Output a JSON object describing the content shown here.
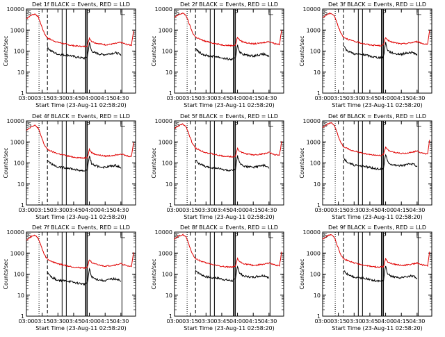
{
  "panels": [
    {
      "title": "Det 1f BLACK = Events, RED = LLD",
      "corner": "S",
      "flag": "P"
    },
    {
      "title": "Det 2f BLACK = Events, RED = LLD",
      "corner": "S",
      "flag": "P"
    },
    {
      "title": "Det 3f BLACK = Events, RED = LLD",
      "corner": "S",
      "flag": "P"
    },
    {
      "title": "Det 4f BLACK = Events, RED = LLD",
      "corner": "S",
      "flag": "P"
    },
    {
      "title": "Det 5f BLACK = Events, RED = LLD",
      "corner": "S",
      "flag": "P"
    },
    {
      "title": "Det 6f BLACK = Events, RED = LLD",
      "corner": "S",
      "flag": "P"
    },
    {
      "title": "Det 7f BLACK = Events, RED = LLD",
      "corner": "S",
      "flag": "P"
    },
    {
      "title": "Det 8f BLACK = Events, RED = LLD",
      "corner": "S",
      "flag": "P"
    },
    {
      "title": "Det 9f BLACK = Events, RED = LLD",
      "corner": "S",
      "flag": "P"
    }
  ],
  "axes": {
    "ylabel": "Counts/sec",
    "xlabel": "Start Time (23-Aug-11 02:58:20)",
    "x_ticks": [
      "03:00",
      "03:15",
      "03:30",
      "03:45",
      "04:00",
      "04:15",
      "04:30"
    ],
    "y_ticks": [
      "1",
      "10",
      "100",
      "1000",
      "10000"
    ]
  },
  "colors": {
    "events": "#000000",
    "lld": "#e00000",
    "axes": "#000000",
    "background": "#ffffff"
  },
  "chart_data": {
    "type": "line",
    "layout": "3x3 grid of panels sharing axes",
    "y_scale": "log",
    "x_range_minutes_after_03_00": [
      0,
      104
    ],
    "ylim": [
      1,
      10000
    ],
    "grid": false,
    "x_unit": "minutes after 03:00",
    "vertical_markers": {
      "dotted": [
        12
      ],
      "dashed": [
        20
      ],
      "solid": [
        34,
        38,
        56,
        57,
        58,
        91
      ]
    },
    "series_samples": {
      "lld_typical": {
        "x": [
          0,
          2,
          5,
          8,
          11,
          14,
          17,
          20,
          25,
          30,
          35,
          40,
          45,
          50,
          55,
          58,
          60,
          62,
          65,
          70,
          75,
          80,
          85,
          90,
          95,
          100,
          102
        ],
        "y": [
          3500,
          4200,
          5200,
          5800,
          4500,
          1800,
          700,
          420,
          320,
          260,
          230,
          200,
          180,
          170,
          165,
          175,
          420,
          300,
          250,
          220,
          200,
          210,
          230,
          260,
          210,
          190,
          900
        ]
      },
      "events_typical": {
        "x": [
          20,
          23,
          26,
          30,
          35,
          40,
          45,
          50,
          55,
          58,
          60,
          62,
          65,
          70,
          75,
          80,
          85,
          88,
          90
        ],
        "y": [
          140,
          95,
          80,
          65,
          60,
          58,
          50,
          45,
          42,
          48,
          220,
          95,
          75,
          65,
          62,
          70,
          75,
          68,
          55
        ]
      }
    }
  }
}
